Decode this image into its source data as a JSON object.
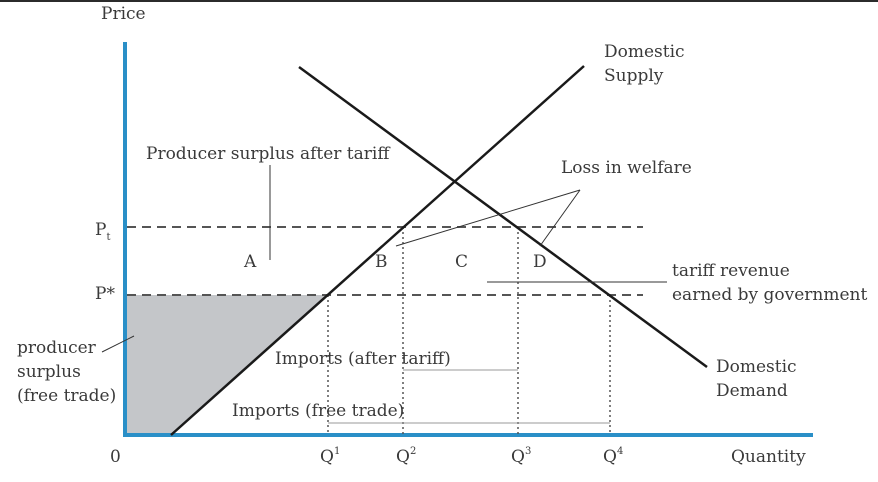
{
  "axes": {
    "y_label": "Price",
    "x_label": "Quantity",
    "origin": "0"
  },
  "price_levels": {
    "pt_main": "P",
    "pt_sub": "t",
    "p_star": "P*"
  },
  "quantities": [
    {
      "main": "Q",
      "sup": "1"
    },
    {
      "main": "Q",
      "sup": "2"
    },
    {
      "main": "Q",
      "sup": "3"
    },
    {
      "main": "Q",
      "sup": "4"
    }
  ],
  "curves": {
    "supply_line1": "Domestic",
    "supply_line2": "Supply",
    "demand_line1": "Domestic",
    "demand_line2": "Demand"
  },
  "regions": {
    "a": "A",
    "b": "B",
    "c": "C",
    "d": "D"
  },
  "annotations": {
    "producer_surplus_after": "Producer surplus after tariff",
    "loss_in_welfare": "Loss in welfare",
    "tariff_revenue_line1": "tariff revenue",
    "tariff_revenue_line2": "earned by government",
    "producer_surplus_free_line1": "producer",
    "producer_surplus_free_line2": "surplus",
    "producer_surplus_free_line3": "(free trade)",
    "imports_after_tariff": "Imports (after tariff)",
    "imports_free_trade": "Imports (free trade)"
  },
  "colors": {
    "axis": "#2a8fc7",
    "curve": "#1a1a1a",
    "shade": "#c4c6c9",
    "dashed": "#555555",
    "text": "#3a3a3a"
  }
}
